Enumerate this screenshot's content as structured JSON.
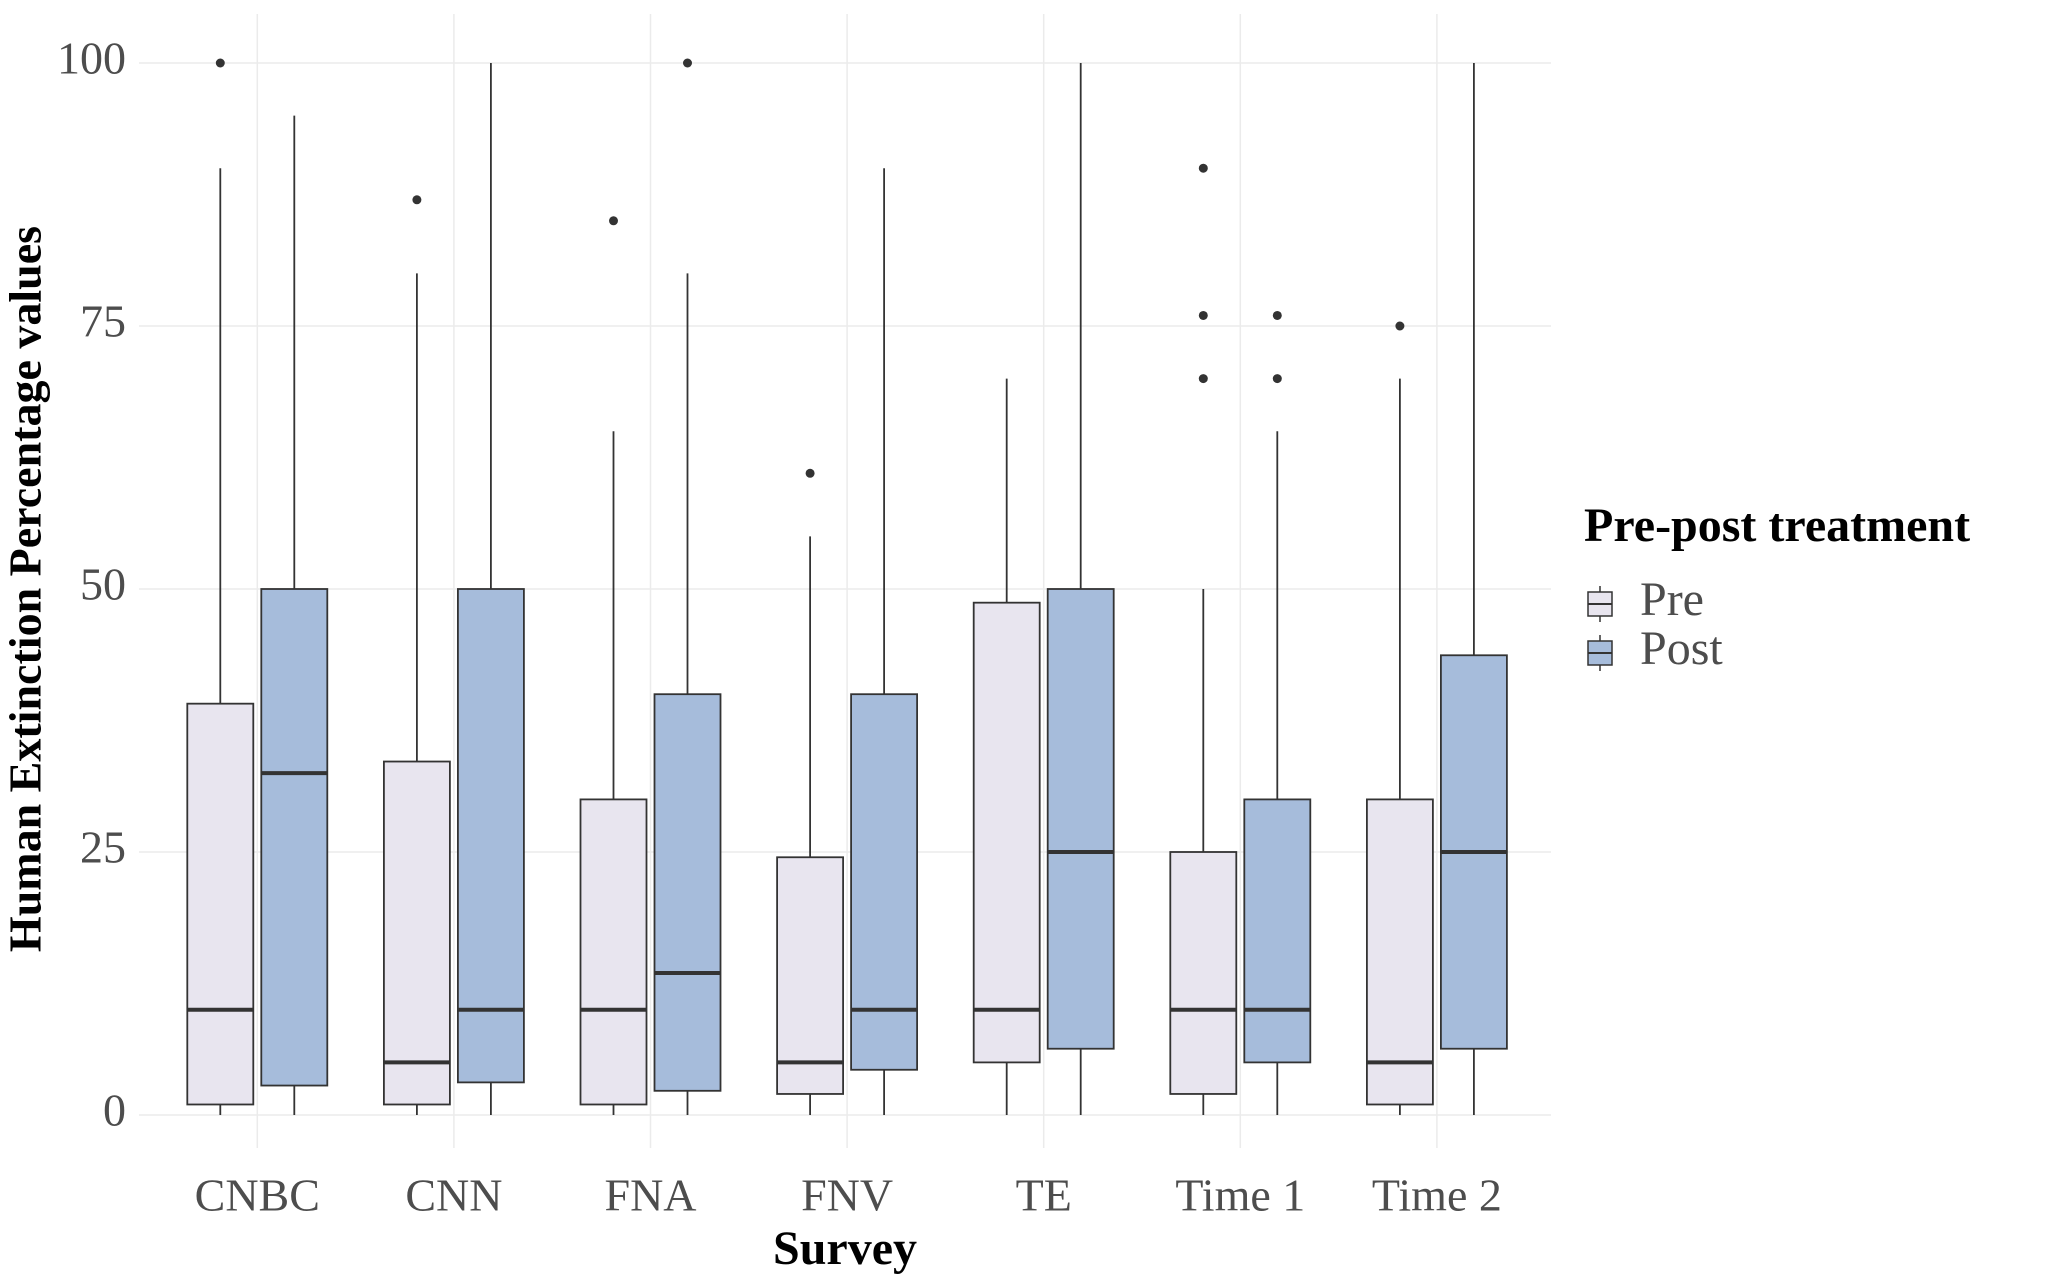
{
  "chart_data": {
    "type": "box",
    "x_label": "Survey",
    "y_label": "Human Extinction Percentage values",
    "categories": [
      "CNBC",
      "CNN",
      "FNA",
      "FNV",
      "TE",
      "Time 1",
      "Time 2"
    ],
    "ylim": [
      0,
      100
    ],
    "yticks": [
      0,
      25,
      50,
      75,
      100
    ],
    "grid": true,
    "legend_title": "Pre-post treatment",
    "legend_position": "right",
    "series": [
      {
        "name": "Pre",
        "color": "#e8e5ef",
        "boxes": [
          {
            "low": 0,
            "q1": 1,
            "median": 10,
            "q3": 39.1,
            "high": 90,
            "outliers": [
              100
            ]
          },
          {
            "low": 0,
            "q1": 1,
            "median": 5,
            "q3": 33.6,
            "high": 80,
            "outliers": [
              87
            ]
          },
          {
            "low": 0,
            "q1": 1,
            "median": 10,
            "q3": 30,
            "high": 65,
            "outliers": [
              85
            ]
          },
          {
            "low": 0,
            "q1": 2,
            "median": 5,
            "q3": 24.5,
            "high": 55,
            "outliers": [
              61
            ]
          },
          {
            "low": 0,
            "q1": 5,
            "median": 10,
            "q3": 48.7,
            "high": 70,
            "outliers": []
          },
          {
            "low": 0,
            "q1": 2,
            "median": 10,
            "q3": 25,
            "high": 50,
            "outliers": [
              70,
              76,
              90
            ]
          },
          {
            "low": 0,
            "q1": 1,
            "median": 5,
            "q3": 30,
            "high": 70,
            "outliers": [
              75
            ]
          }
        ]
      },
      {
        "name": "Post",
        "color": "#a6bcdb",
        "boxes": [
          {
            "low": 0,
            "q1": 2.8,
            "median": 32.5,
            "q3": 50,
            "high": 95,
            "outliers": []
          },
          {
            "low": 0,
            "q1": 3.1,
            "median": 10,
            "q3": 50,
            "high": 100,
            "outliers": []
          },
          {
            "low": 0,
            "q1": 2.3,
            "median": 13.5,
            "q3": 40,
            "high": 80,
            "outliers": [
              100
            ]
          },
          {
            "low": 0,
            "q1": 4.3,
            "median": 10,
            "q3": 40,
            "high": 90,
            "outliers": []
          },
          {
            "low": 0,
            "q1": 6.3,
            "median": 25,
            "q3": 50,
            "high": 100,
            "outliers": []
          },
          {
            "low": 0,
            "q1": 5,
            "median": 10,
            "q3": 30,
            "high": 65,
            "outliers": [
              70,
              76
            ]
          },
          {
            "low": 0,
            "q1": 6.3,
            "median": 25,
            "q3": 43.7,
            "high": 100,
            "outliers": []
          }
        ]
      }
    ]
  }
}
